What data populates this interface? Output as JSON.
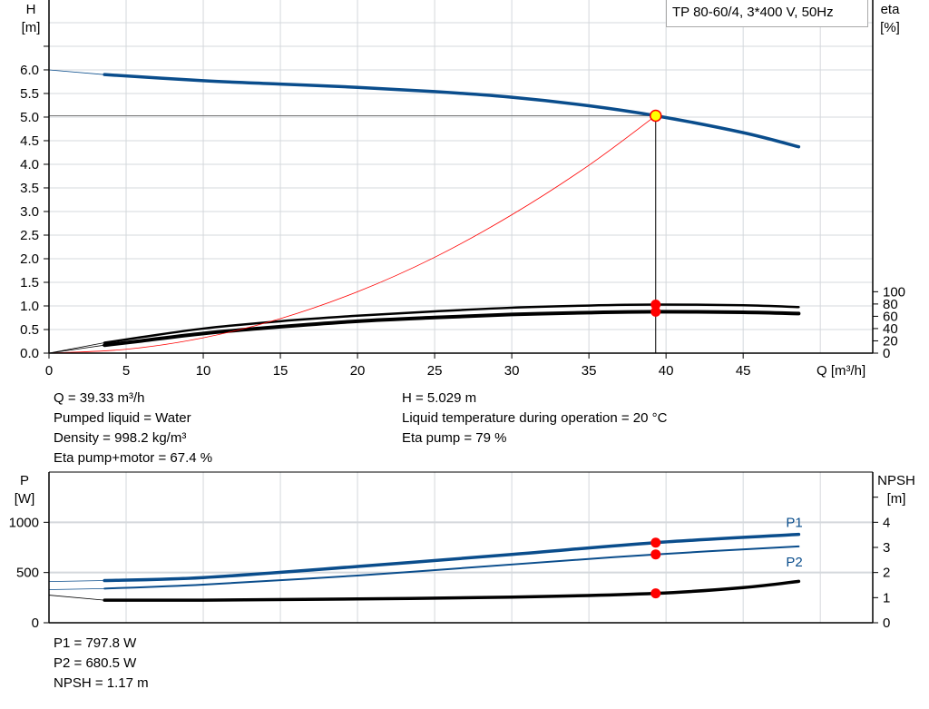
{
  "title": "TP 80-60/4, 3*400 V, 50Hz",
  "colors": {
    "head": "#0a4d8c",
    "eta": "#000000",
    "system": "#ff0000",
    "power": "#0a4d8c",
    "npsh": "#000000",
    "point": "#ff0000",
    "duty_point": "#ffff00"
  },
  "chart_data": [
    {
      "type": "line",
      "xlabel": "Q [m³/h]",
      "ylabel": [
        "H",
        "[m]"
      ],
      "y2label": [
        "eta",
        "[%]"
      ],
      "xlim": [
        0,
        53.4
      ],
      "ylim": [
        0,
        7.48
      ],
      "y2lim": [
        0,
        575
      ],
      "xticks": [
        "0",
        "5",
        "10",
        "15",
        "20",
        "25",
        "30",
        "35",
        "40",
        "45"
      ],
      "yticks": [
        "0.0",
        "0.5",
        "1.0",
        "1.5",
        "2.0",
        "2.5",
        "3.0",
        "3.5",
        "4.0",
        "4.5",
        "5.0",
        "5.5",
        "6.0"
      ],
      "y2ticks": [
        "0",
        "20",
        "40",
        "60",
        "80",
        "100"
      ],
      "grid": true,
      "duty_point": {
        "Q": 39.33,
        "H": 5.029,
        "eta_pump": 79,
        "eta_total": 67.4
      },
      "series": [
        {
          "id": "H",
          "axis": "left",
          "x": [
            0,
            3.6,
            10,
            15,
            20,
            25,
            30,
            35,
            39.33,
            45,
            48.6
          ],
          "y": [
            6.0,
            5.9,
            5.77,
            5.7,
            5.63,
            5.54,
            5.42,
            5.24,
            5.029,
            4.67,
            4.37
          ]
        },
        {
          "id": "eta_pump",
          "axis": "right",
          "x": [
            0,
            3.6,
            6,
            10,
            15,
            20,
            25,
            30,
            35,
            39.33,
            45,
            48.6
          ],
          "y": [
            0,
            17,
            26,
            40,
            52,
            61,
            68,
            74,
            77.5,
            79,
            78,
            75
          ]
        },
        {
          "id": "eta_total",
          "axis": "right",
          "x": [
            0,
            3.6,
            6,
            10,
            15,
            20,
            25,
            30,
            35,
            39.33,
            45,
            48.6
          ],
          "y": [
            0,
            13,
            20,
            32,
            43,
            52,
            58,
            63,
            66,
            67.4,
            66.5,
            64.5
          ]
        },
        {
          "id": "system",
          "axis": "left",
          "x": [
            0,
            5,
            10,
            15,
            20,
            25,
            30,
            35,
            39.33
          ],
          "y": [
            0,
            0.081,
            0.325,
            0.731,
            1.3,
            2.03,
            2.93,
            3.98,
            5.029
          ]
        }
      ]
    },
    {
      "type": "line",
      "ylabel": [
        "P",
        "[W]"
      ],
      "y2label": [
        "NPSH",
        "[m]"
      ],
      "xlim": [
        0,
        53.4
      ],
      "ylim": [
        0,
        1500
      ],
      "y2lim": [
        0,
        6
      ],
      "yticks": [
        "0",
        "500",
        "1000"
      ],
      "y2ticks": [
        "0",
        "1",
        "2",
        "3",
        "4"
      ],
      "grid": true,
      "series": [
        {
          "id": "P1",
          "name": "P1",
          "axis": "left",
          "x": [
            0,
            3.6,
            10,
            20,
            30,
            39.33,
            48.6
          ],
          "y": [
            410,
            420,
            450,
            560,
            680,
            797.8,
            880
          ]
        },
        {
          "id": "P2",
          "name": "P2",
          "axis": "left",
          "x": [
            0,
            3.6,
            10,
            20,
            30,
            39.33,
            48.6
          ],
          "y": [
            330,
            340,
            380,
            470,
            580,
            680.5,
            760
          ]
        },
        {
          "id": "NPSH",
          "axis": "right",
          "x": [
            0,
            3.6,
            10,
            20,
            30,
            39.33,
            45,
            48.6
          ],
          "y": [
            1.1,
            0.9,
            0.9,
            0.95,
            1.02,
            1.17,
            1.4,
            1.65
          ]
        }
      ]
    }
  ],
  "info_top_left": [
    "Q = 39.33 m³/h",
    "Pumped liquid = Water",
    "Density = 998.2 kg/m³",
    "Eta pump+motor = 67.4 %"
  ],
  "info_top_right": [
    "H = 5.029 m",
    "Liquid temperature during operation = 20 °C",
    "Eta pump = 79 %"
  ],
  "info_bottom": [
    "P1 = 797.8 W",
    "P2 = 680.5 W",
    "NPSH = 1.17 m"
  ]
}
